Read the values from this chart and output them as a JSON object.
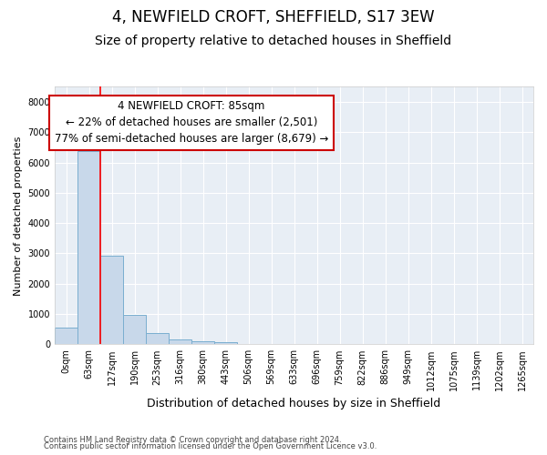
{
  "title": "4, NEWFIELD CROFT, SHEFFIELD, S17 3EW",
  "subtitle": "Size of property relative to detached houses in Sheffield",
  "xlabel": "Distribution of detached houses by size in Sheffield",
  "ylabel": "Number of detached properties",
  "footer_line1": "Contains HM Land Registry data © Crown copyright and database right 2024.",
  "footer_line2": "Contains public sector information licensed under the Open Government Licence v3.0.",
  "bar_labels": [
    "0sqm",
    "63sqm",
    "127sqm",
    "190sqm",
    "253sqm",
    "316sqm",
    "380sqm",
    "443sqm",
    "506sqm",
    "569sqm",
    "633sqm",
    "696sqm",
    "759sqm",
    "822sqm",
    "886sqm",
    "949sqm",
    "1012sqm",
    "1075sqm",
    "1139sqm",
    "1202sqm",
    "1265sqm"
  ],
  "bar_values": [
    550,
    6380,
    2920,
    960,
    370,
    165,
    100,
    60,
    0,
    0,
    0,
    0,
    0,
    0,
    0,
    0,
    0,
    0,
    0,
    0,
    0
  ],
  "bar_color": "#c8d8ea",
  "bar_edge_color": "#7aaed0",
  "ylim": [
    0,
    8500
  ],
  "yticks": [
    0,
    1000,
    2000,
    3000,
    4000,
    5000,
    6000,
    7000,
    8000
  ],
  "red_line_x": 1.5,
  "annotation_text": "4 NEWFIELD CROFT: 85sqm\n← 22% of detached houses are smaller (2,501)\n77% of semi-detached houses are larger (8,679) →",
  "annotation_box_color": "#ffffff",
  "annotation_border_color": "#cc0000",
  "plot_bg_color": "#e8eef5",
  "fig_bg_color": "#ffffff",
  "grid_color": "#ffffff",
  "title_fontsize": 12,
  "subtitle_fontsize": 10,
  "annotation_fontsize": 8.5,
  "ylabel_fontsize": 8,
  "xlabel_fontsize": 9,
  "tick_fontsize": 7
}
